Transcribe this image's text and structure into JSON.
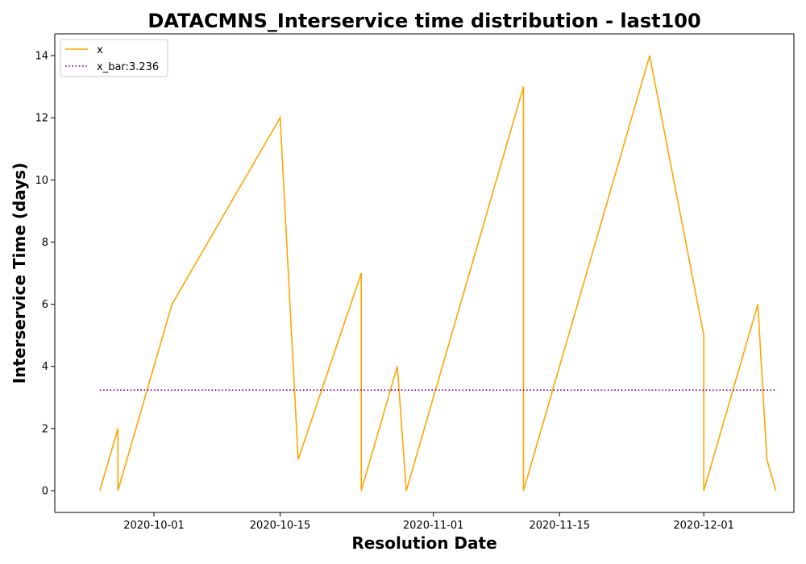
{
  "chart_data": {
    "type": "line",
    "title": "DATACMNS_Interservice time distribution - last100",
    "xlabel": "Resolution Date",
    "ylabel": "Interservice Time (days)",
    "xlim": [
      "2020-09-20",
      "2020-12-11"
    ],
    "ylim": [
      -0.7,
      14.7
    ],
    "x_ticks": [
      "2020-10-01",
      "2020-10-15",
      "2020-11-01",
      "2020-11-15",
      "2020-12-01"
    ],
    "y_ticks": [
      0,
      2,
      4,
      6,
      8,
      10,
      12,
      14
    ],
    "grid": false,
    "legend": {
      "placement": "top-left"
    },
    "series": [
      {
        "name": "x",
        "color": "#ffa500",
        "style": "solid",
        "points": [
          {
            "x": "2020-09-25",
            "y": 0
          },
          {
            "x": "2020-09-27",
            "y": 2
          },
          {
            "x": "2020-09-27",
            "y": 0
          },
          {
            "x": "2020-10-03",
            "y": 6
          },
          {
            "x": "2020-10-15",
            "y": 12
          },
          {
            "x": "2020-10-17",
            "y": 1
          },
          {
            "x": "2020-10-24",
            "y": 7
          },
          {
            "x": "2020-10-24",
            "y": 0
          },
          {
            "x": "2020-10-28",
            "y": 4
          },
          {
            "x": "2020-10-29",
            "y": 0
          },
          {
            "x": "2020-10-29",
            "y": 0
          },
          {
            "x": "2020-11-11",
            "y": 13
          },
          {
            "x": "2020-11-11",
            "y": 0
          },
          {
            "x": "2020-11-25",
            "y": 14
          },
          {
            "x": "2020-12-01",
            "y": 5
          },
          {
            "x": "2020-12-01",
            "y": 0
          },
          {
            "x": "2020-12-07",
            "y": 6
          },
          {
            "x": "2020-12-08",
            "y": 1
          },
          {
            "x": "2020-12-09",
            "y": 0
          },
          {
            "x": "2020-12-09",
            "y": 0
          }
        ]
      },
      {
        "name": "x_bar:3.236",
        "color": "#800080",
        "style": "dotted",
        "points": [
          {
            "x": "2020-09-25",
            "y": 3.236
          },
          {
            "x": "2020-12-09",
            "y": 3.236
          }
        ]
      }
    ]
  }
}
